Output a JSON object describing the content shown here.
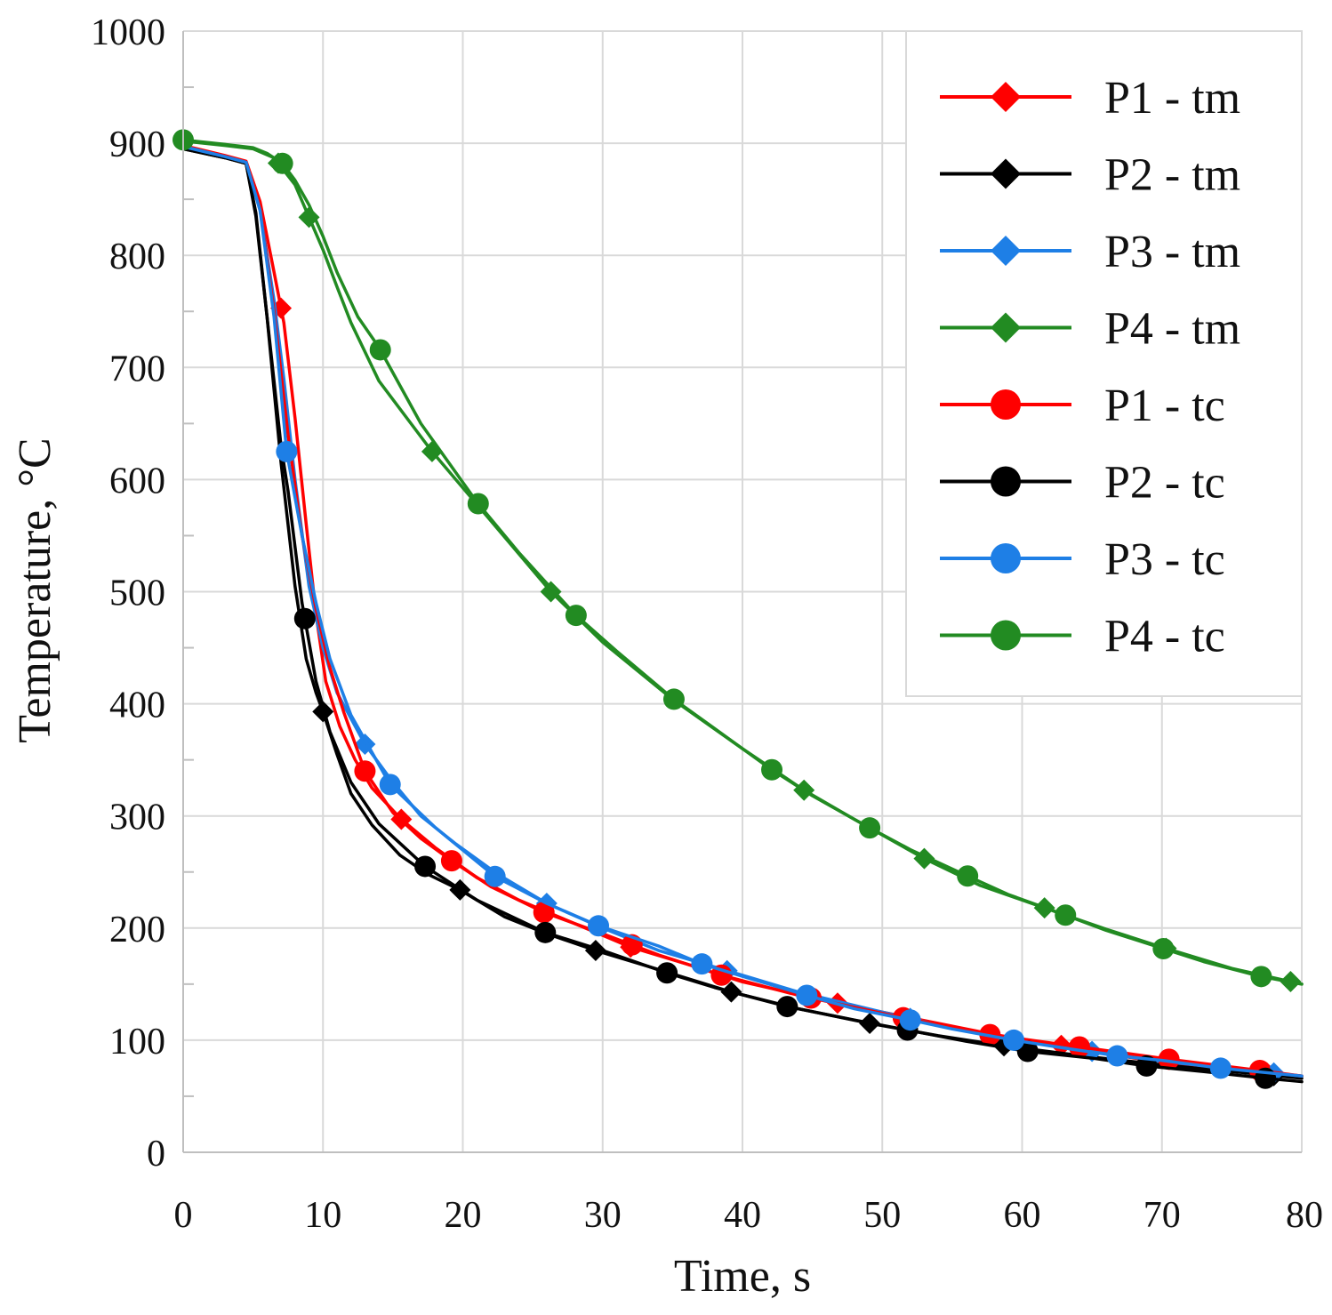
{
  "chart_data": {
    "type": "line",
    "xlabel": "Time, s",
    "ylabel": "Temperature, °C",
    "xlim": [
      0,
      80
    ],
    "ylim": [
      0,
      1000
    ],
    "x_ticks": [
      "0",
      "10",
      "20",
      "30",
      "40",
      "50",
      "60",
      "70",
      "80"
    ],
    "y_ticks": [
      "0",
      "100",
      "200",
      "300",
      "400",
      "500",
      "600",
      "700",
      "800",
      "900",
      "1000"
    ],
    "grid": true,
    "legend_position": "top-right",
    "series": [
      {
        "name": "P1 - tm",
        "color": "#ff0000",
        "marker": "diamond",
        "x": [
          0,
          3,
          4.5,
          5.5,
          6.5,
          7.2,
          8,
          8.8,
          9.5,
          10.2,
          11.2,
          12.3,
          13.5,
          15.6,
          18,
          21,
          24,
          28,
          32,
          36,
          40,
          46.8,
          52,
          58,
          63,
          68,
          73,
          80
        ],
        "y": [
          898,
          889,
          884,
          848,
          785,
          740,
          655,
          560,
          480,
          420,
          380,
          350,
          325,
          297,
          272,
          245,
          225,
          204,
          183,
          168,
          152,
          133,
          120,
          105,
          95,
          84,
          76,
          68
        ],
        "marker_x": [
          7,
          15.6,
          32,
          46.8,
          62.8,
          77.5
        ]
      },
      {
        "name": "P2 - tm",
        "color": "#000000",
        "marker": "diamond",
        "x": [
          0,
          3,
          4.5,
          5.2,
          6,
          7,
          8,
          8.8,
          9.5,
          10,
          11,
          12,
          13.5,
          15.5,
          17.5,
          19.8,
          23,
          26,
          29.5,
          34,
          39.2,
          44,
          49.1,
          54,
          58.7,
          65,
          70,
          80
        ],
        "y": [
          895,
          887,
          882,
          838,
          745,
          615,
          505,
          440,
          410,
          393,
          355,
          320,
          292,
          265,
          248,
          234,
          210,
          195,
          180,
          163,
          143,
          128,
          115,
          104,
          95,
          85,
          78,
          66
        ],
        "marker_x": [
          10,
          19.8,
          29.5,
          39.2,
          49.1,
          58.7,
          78
        ]
      },
      {
        "name": "P3 - tm",
        "color": "#1e7fe6",
        "marker": "diamond",
        "x": [
          0,
          3,
          4.5,
          5.5,
          6.5,
          7.2,
          8,
          9,
          10,
          11,
          13,
          15,
          17,
          19.5,
          22.5,
          26,
          30,
          34,
          38.9,
          44,
          50,
          55,
          60,
          65,
          70,
          75,
          80
        ],
        "y": [
          897,
          888,
          883,
          840,
          760,
          690,
          600,
          505,
          450,
          410,
          364,
          330,
          300,
          275,
          248,
          222,
          200,
          180,
          162,
          143,
          125,
          111,
          99,
          90,
          81,
          75,
          68
        ],
        "marker_x": [
          13,
          26,
          38.9,
          52,
          65,
          78
        ]
      },
      {
        "name": "P4 - tm",
        "color": "#228b22",
        "marker": "diamond",
        "x": [
          0,
          3,
          5,
          6.5,
          8,
          9,
          10,
          11,
          12,
          14,
          17.8,
          21,
          26.3,
          30,
          35,
          40,
          44.4,
          48,
          53,
          57,
          61.6,
          66,
          70,
          75,
          80
        ],
        "y": [
          902,
          898,
          895,
          887,
          863,
          834,
          805,
          772,
          740,
          688,
          625,
          578,
          500,
          455,
          404,
          360,
          323,
          297,
          262,
          238,
          218,
          199,
          183,
          164,
          150
        ],
        "marker_x": [
          6.8,
          9,
          17.8,
          26.3,
          44.4,
          53,
          61.6,
          70.3,
          79.2
        ]
      },
      {
        "name": "P1 - tc",
        "color": "#ff0000",
        "marker": "circle",
        "x": [
          0,
          3,
          4.5,
          5.5,
          6.5,
          7.5,
          8.5,
          9.5,
          10.5,
          11.5,
          13,
          15,
          17,
          19.2,
          22,
          25.8,
          30,
          34,
          38.5,
          44,
          51.5,
          57.7,
          64.1,
          70.5,
          77,
          80
        ],
        "y": [
          896,
          888,
          883,
          842,
          750,
          640,
          550,
          485,
          432,
          392,
          340,
          303,
          280,
          260,
          237,
          214,
          195,
          176,
          158,
          140,
          120,
          105,
          94,
          83,
          73,
          68
        ],
        "marker_x": [
          13,
          19.2,
          25.8,
          32.1,
          38.5,
          44.9,
          51.5,
          57.7,
          64.1,
          70.5,
          77
        ]
      },
      {
        "name": "P2 - tc",
        "color": "#000000",
        "marker": "circle",
        "x": [
          0,
          3,
          4.5,
          5.2,
          6,
          7,
          7.5,
          8.5,
          9.5,
          10.5,
          12,
          14,
          17.3,
          21,
          25.9,
          30,
          34.6,
          38,
          43.2,
          48,
          51.8,
          56,
          60.4,
          65,
          68.9,
          73,
          77.4,
          80
        ],
        "y": [
          895,
          887,
          882,
          835,
          745,
          630,
          590,
          490,
          420,
          375,
          330,
          293,
          255,
          225,
          196,
          180,
          160,
          147,
          130,
          118,
          109,
          99,
          90,
          84,
          77,
          72,
          66,
          63
        ],
        "marker_x": [
          8.7,
          17.3,
          25.9,
          34.6,
          43.2,
          51.8,
          60.4,
          68.9,
          77.4
        ]
      },
      {
        "name": "P3 - tc",
        "color": "#1e7fe6",
        "marker": "circle",
        "x": [
          0,
          3,
          4.5,
          5.5,
          6.5,
          7.4,
          8.5,
          9.5,
          10.5,
          12,
          14.8,
          18,
          22.3,
          26,
          29.7,
          34,
          37.1,
          40,
          44.6,
          48,
          52,
          55,
          59.4,
          63,
          66.8,
          70,
          74.2,
          80
        ],
        "y": [
          897,
          888,
          883,
          840,
          745,
          625,
          550,
          490,
          440,
          390,
          328,
          290,
          246,
          222,
          202,
          184,
          168,
          157,
          140,
          128,
          118,
          110,
          100,
          93,
          86,
          82,
          75,
          68
        ],
        "marker_x": [
          7.4,
          14.8,
          22.3,
          29.7,
          37.1,
          44.6,
          52,
          59.4,
          66.8,
          74.2
        ]
      },
      {
        "name": "P4 - tc",
        "color": "#228b22",
        "marker": "circle",
        "x": [
          0,
          3,
          5,
          6,
          7.1,
          8,
          9,
          10,
          11,
          12.5,
          14,
          17,
          21,
          24,
          28,
          31,
          35,
          38,
          42,
          45,
          49,
          52,
          56,
          59,
          63,
          66,
          70,
          73,
          77,
          80
        ],
        "y": [
          903,
          899,
          896,
          891,
          882,
          867,
          845,
          817,
          785,
          745,
          718,
          650,
          580,
          535,
          480,
          447,
          405,
          378,
          342,
          318,
          290,
          270,
          247,
          230,
          212,
          198,
          182,
          170,
          157,
          150
        ],
        "marker_x": [
          0,
          7.1,
          14.1,
          21.1,
          28.1,
          35.1,
          42.1,
          49.1,
          56.1,
          63.1,
          70.1,
          77.1
        ]
      }
    ]
  }
}
